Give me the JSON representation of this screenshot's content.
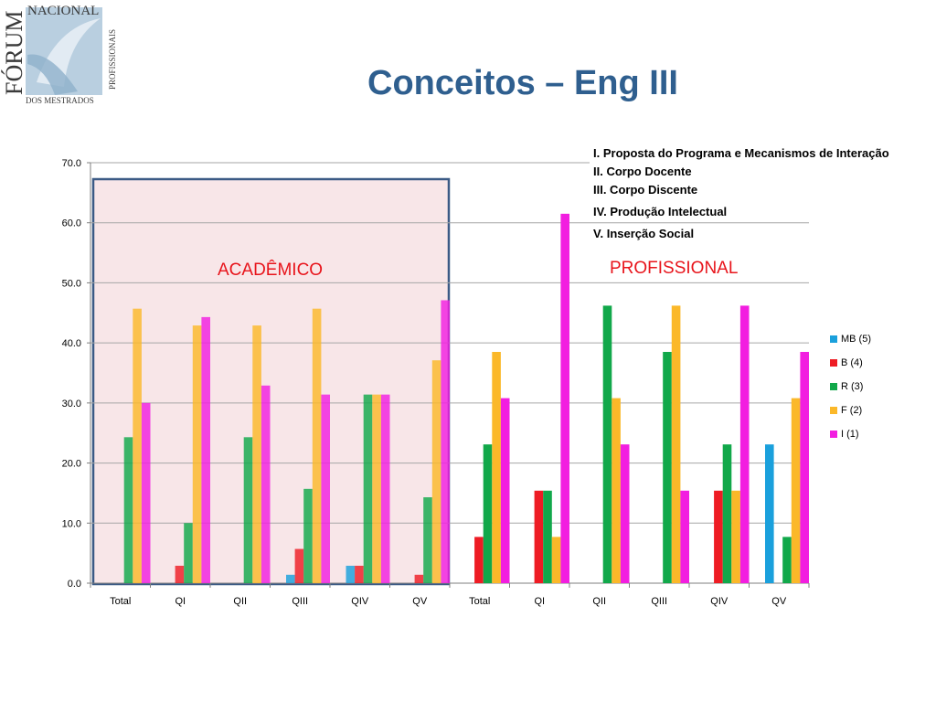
{
  "slide": {
    "title": "Conceitos – Eng III",
    "logo": {
      "name_top": "NACIONAL",
      "name_big": "FÓRUM",
      "name_side": "PROFISSIONAIS",
      "name_bottom": "DOS MESTRADOS"
    }
  },
  "criteria": [
    "I. Proposta do Programa e Mecanismos de Interação",
    "II. Corpo Docente",
    "III. Corpo Discente",
    "IV. Produção Intelectual",
    "V. Inserção Social"
  ],
  "group_labels": {
    "academico": "ACADÊMICO",
    "profissional": "PROFISSIONAL"
  },
  "colors": {
    "highlight_fill": "#f8e6e8",
    "highlight_border": "#3b5a85",
    "grid": "#a6a6a6",
    "axis": "#7f7f7f"
  },
  "chart_data": {
    "type": "bar",
    "ylim": [
      0,
      70
    ],
    "yticks": [
      "0.0",
      "10.0",
      "20.0",
      "30.0",
      "40.0",
      "50.0",
      "60.0",
      "70.0"
    ],
    "grid": true,
    "legend_position": "right",
    "categories": [
      "Total",
      "QI",
      "QII",
      "QIII",
      "QIV",
      "QV",
      "Total",
      "QI",
      "QII",
      "QIII",
      "QIV",
      "QV"
    ],
    "series": [
      {
        "name": "MB (5)",
        "color": "#1aa0dc",
        "values": [
          0,
          0,
          0,
          1.4,
          2.9,
          0,
          0,
          0,
          0,
          0,
          0,
          23.1
        ]
      },
      {
        "name": "B (4)",
        "color": "#ee1c24",
        "values": [
          0,
          2.9,
          0,
          5.7,
          2.9,
          1.4,
          7.7,
          15.4,
          0,
          0,
          15.4,
          0
        ]
      },
      {
        "name": "R (3)",
        "color": "#11a84a",
        "values": [
          24.3,
          10.0,
          24.3,
          15.7,
          31.4,
          14.3,
          23.1,
          15.4,
          46.2,
          38.5,
          23.1,
          7.7
        ]
      },
      {
        "name": "F (2)",
        "color": "#fbb829",
        "values": [
          45.7,
          42.9,
          42.9,
          45.7,
          31.4,
          37.1,
          38.5,
          7.7,
          30.8,
          46.2,
          15.4,
          30.8
        ]
      },
      {
        "name": "I (1)",
        "color": "#f21ee0",
        "values": [
          30.0,
          44.3,
          32.9,
          31.4,
          31.4,
          47.1,
          30.8,
          61.5,
          23.1,
          15.4,
          46.2,
          38.5
        ]
      }
    ]
  }
}
